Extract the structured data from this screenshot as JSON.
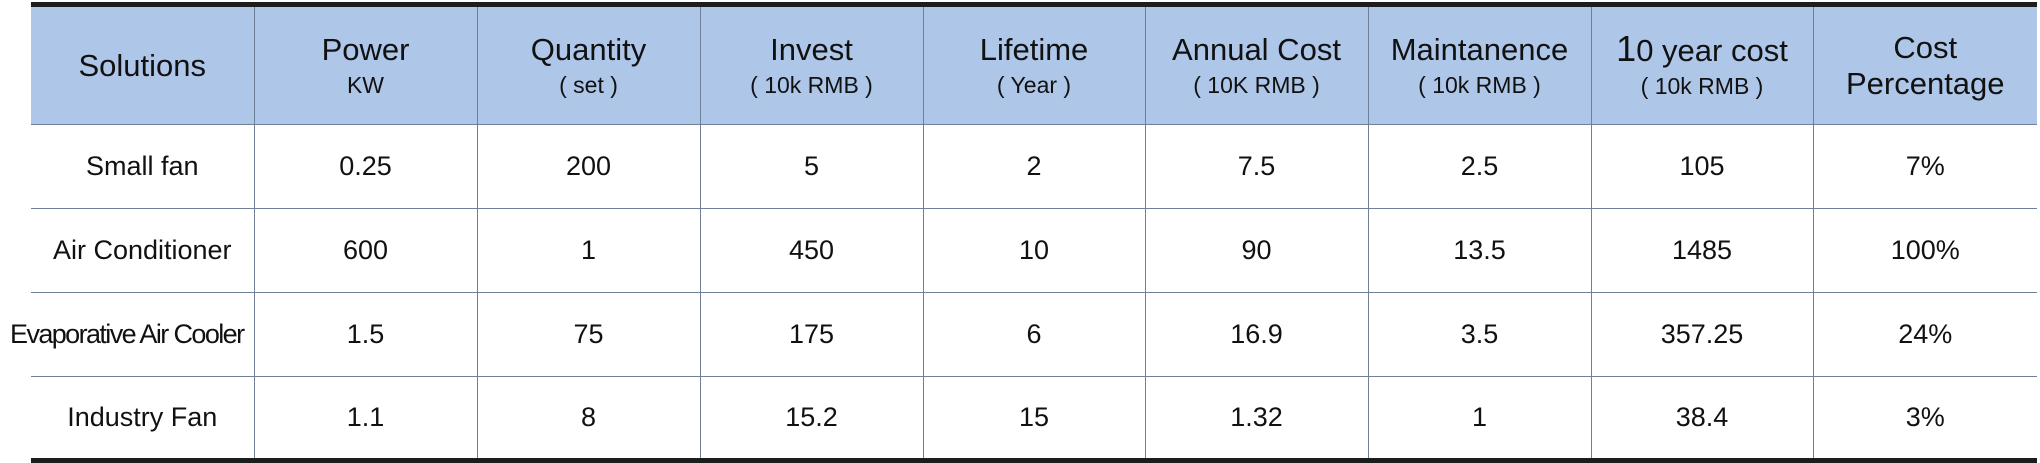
{
  "table": {
    "headers": [
      {
        "main": "Solutions",
        "sub": ""
      },
      {
        "main": "Power",
        "sub": "KW"
      },
      {
        "main": "Quantity",
        "sub": "( set )"
      },
      {
        "main": "Invest",
        "sub": "( 10k RMB )"
      },
      {
        "main": "Lifetime",
        "sub": "( Year )"
      },
      {
        "main": "Annual Cost",
        "sub": "( 10K RMB )"
      },
      {
        "main": "Maintanence",
        "sub": "( 10k RMB )"
      },
      {
        "main_lead": "1",
        "main_rest": "0 year cost",
        "sub": "( 10k RMB )"
      },
      {
        "main": "Cost",
        "sub": "Percentage"
      }
    ],
    "rows": [
      [
        "Small fan",
        "0.25",
        "200",
        "5",
        "2",
        "7.5",
        "2.5",
        "105",
        "7%"
      ],
      [
        "Air Conditioner",
        "600",
        "1",
        "450",
        "10",
        "90",
        "13.5",
        "1485",
        "100%"
      ],
      [
        "Evaporative Air Cooler",
        "1.5",
        "75",
        "175",
        "6",
        "16.9",
        "3.5",
        "357.25",
        "24%"
      ],
      [
        "Industry Fan",
        "1.1",
        "8",
        "15.2",
        "15",
        "1.32",
        "1",
        "38.4",
        "3%"
      ]
    ]
  }
}
